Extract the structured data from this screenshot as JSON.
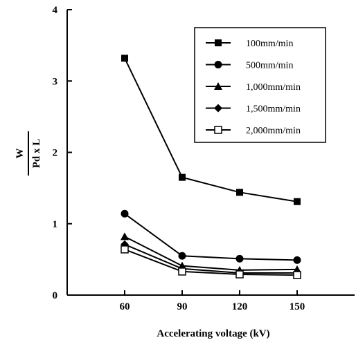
{
  "chart_data": {
    "type": "line",
    "title": "",
    "xlabel": "Accelerating voltage (kV)",
    "ylabel": {
      "numerator": "W",
      "denominator": "Pd x L"
    },
    "x": [
      60,
      90,
      120,
      150
    ],
    "xticks": [
      "60",
      "90",
      "120",
      "150"
    ],
    "yticks": [
      "0",
      "1",
      "2",
      "3",
      "4"
    ],
    "xlim": [
      30,
      180
    ],
    "ylim": [
      0,
      4
    ],
    "grid": false,
    "legend_position": "top-right",
    "series": [
      {
        "name": "100mm/min",
        "marker": "filled-square",
        "values": [
          3.32,
          1.65,
          1.44,
          1.31
        ]
      },
      {
        "name": "500mm/min",
        "marker": "filled-circle",
        "values": [
          1.14,
          0.55,
          0.51,
          0.49
        ]
      },
      {
        "name": "1,000mm/min",
        "marker": "filled-triangle",
        "values": [
          0.82,
          0.41,
          0.35,
          0.36
        ]
      },
      {
        "name": "1,500mm/min",
        "marker": "filled-diamond",
        "values": [
          0.71,
          0.37,
          0.31,
          0.31
        ]
      },
      {
        "name": "2,000mm/min",
        "marker": "open-square",
        "values": [
          0.64,
          0.33,
          0.29,
          0.28
        ]
      }
    ]
  }
}
